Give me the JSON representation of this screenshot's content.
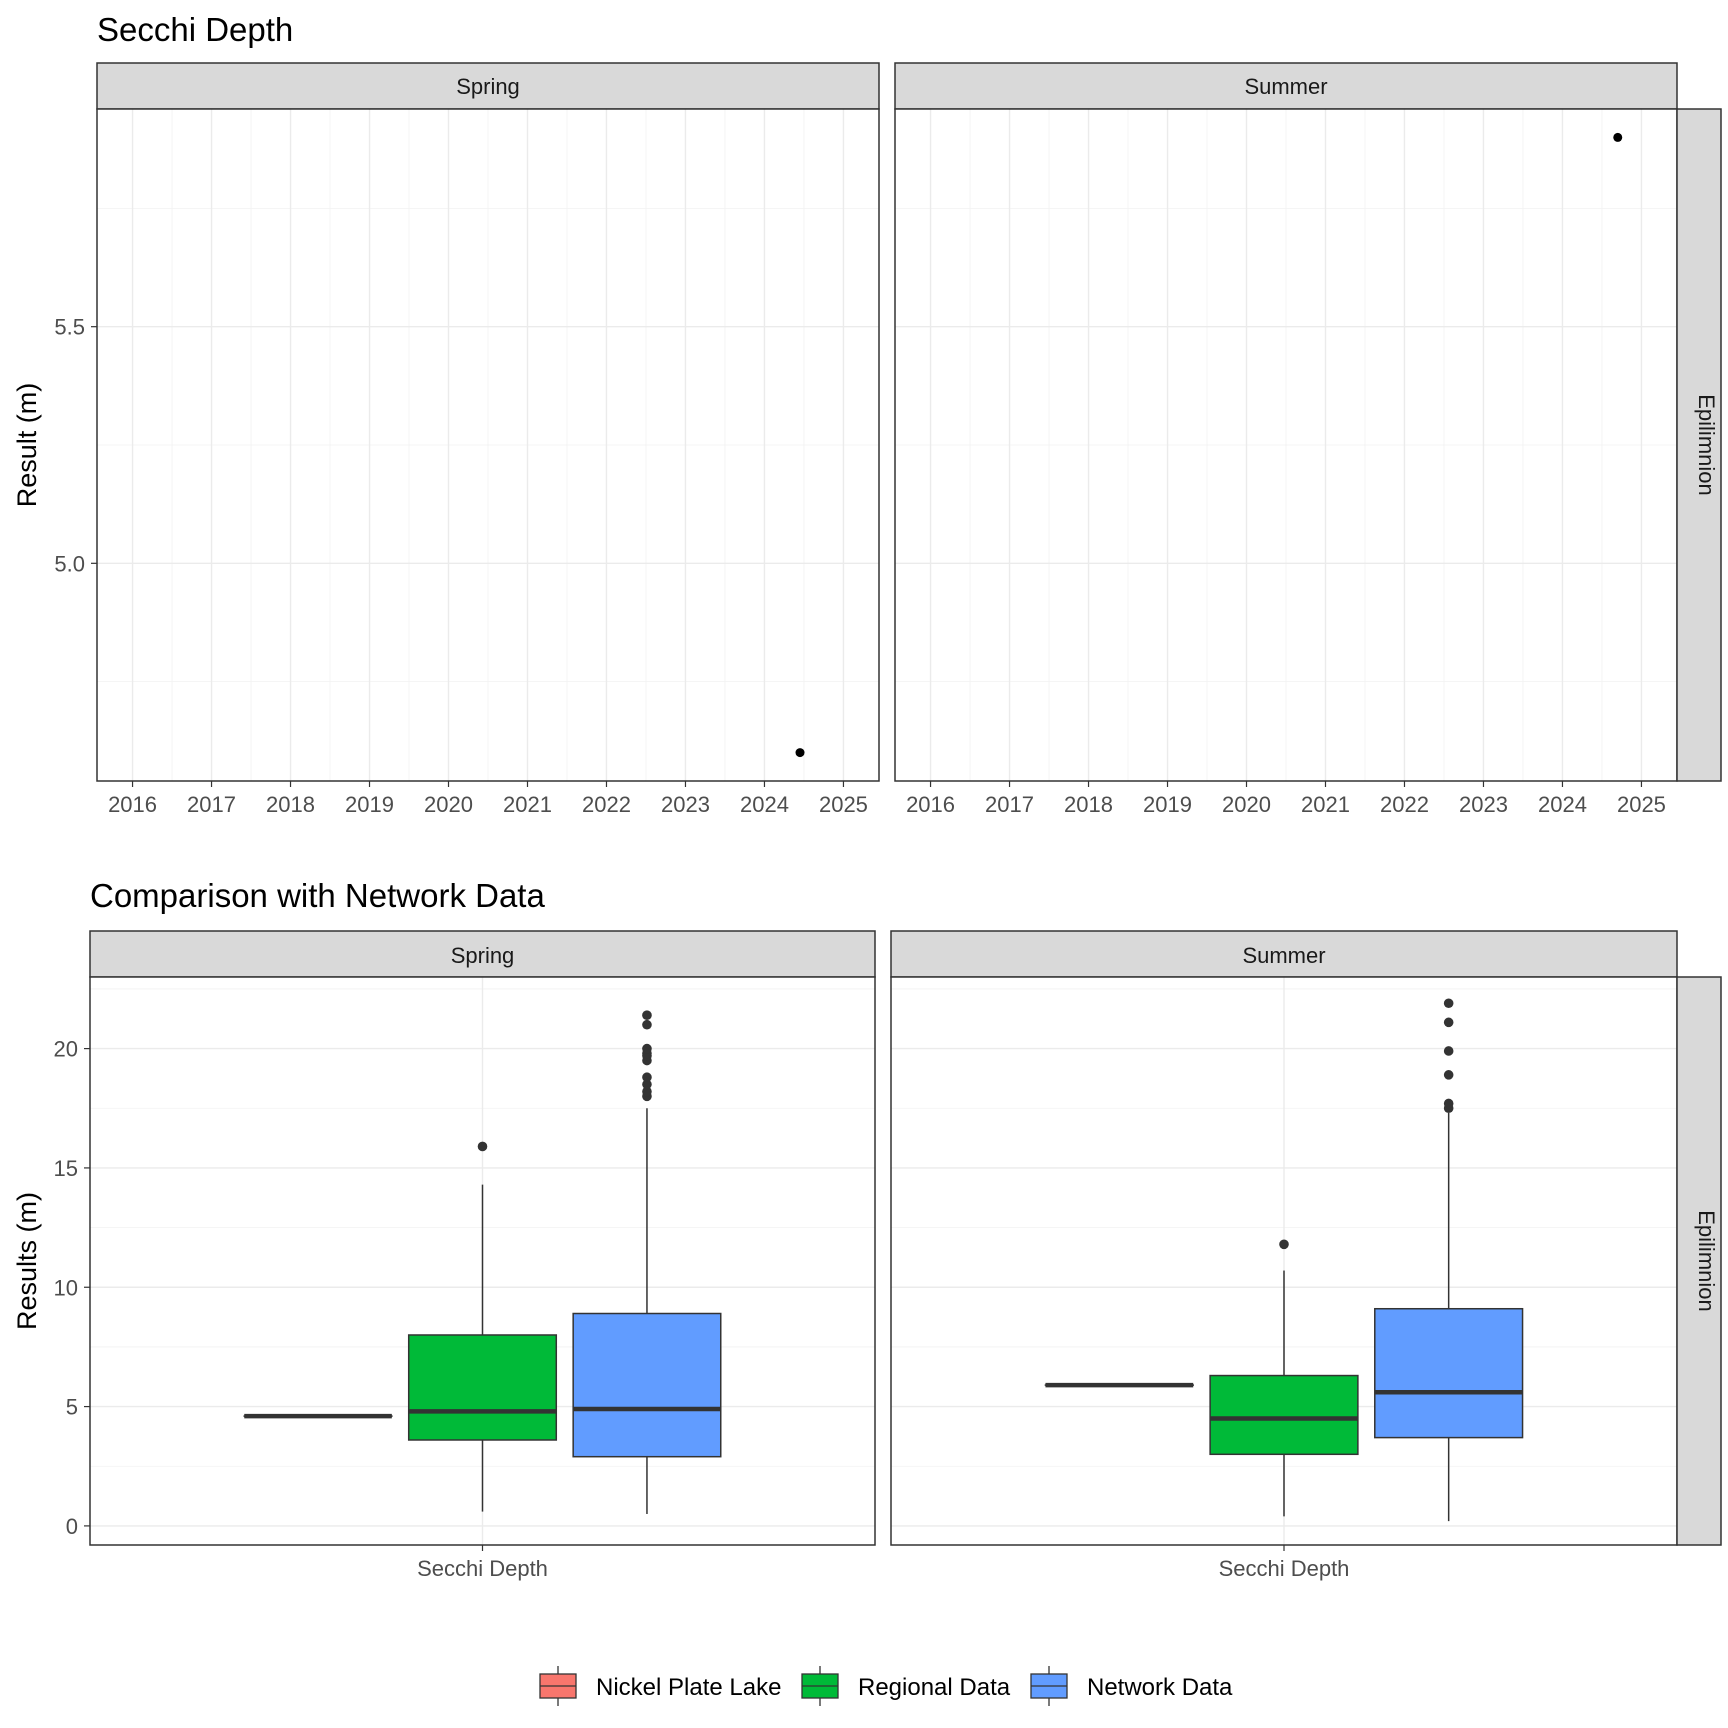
{
  "colors": {
    "nickel": "#F8766D",
    "regional": "#00BA38",
    "network": "#619CFF",
    "point": "#000000",
    "outlier": "#333333"
  },
  "chart_data": [
    {
      "type": "scatter",
      "title": "Secchi Depth",
      "ylabel": "Result (m)",
      "xlabel": "",
      "facet_row_label": "Epilimnion",
      "xlim": [
        2015.55,
        2025.45
      ],
      "ylim": [
        4.54,
        5.96
      ],
      "x_ticks": [
        2016,
        2017,
        2018,
        2019,
        2020,
        2021,
        2022,
        2023,
        2024,
        2025
      ],
      "y_ticks": [
        5.0,
        5.5
      ],
      "y_tick_labels": [
        "5.0",
        "5.5"
      ],
      "grid": true,
      "panels": [
        {
          "facet": "Spring",
          "points": [
            {
              "x": 2024.45,
              "y": 4.6
            }
          ]
        },
        {
          "facet": "Summer",
          "points": [
            {
              "x": 2024.7,
              "y": 5.9
            }
          ]
        }
      ]
    },
    {
      "type": "box",
      "title": "Comparison with Network Data",
      "ylabel": "Results (m)",
      "xlabel": "",
      "category": "Secchi Depth",
      "facet_row_label": "Epilimnion",
      "ylim": [
        -0.8,
        23.0
      ],
      "y_ticks": [
        0,
        5,
        10,
        15,
        20
      ],
      "y_tick_labels": [
        "0",
        "5",
        "10",
        "15",
        "20"
      ],
      "grid": true,
      "legend_position": "bottom",
      "legend": [
        "Nickel Plate Lake",
        "Regional Data",
        "Network Data"
      ],
      "panels": [
        {
          "facet": "Spring",
          "boxes": [
            {
              "group": "Nickel Plate Lake",
              "min": 4.6,
              "q1": 4.6,
              "median": 4.6,
              "q3": 4.6,
              "max": 4.6,
              "outliers": []
            },
            {
              "group": "Regional Data",
              "min": 0.6,
              "q1": 3.6,
              "median": 4.8,
              "q3": 8.0,
              "max": 14.3,
              "outliers": [
                15.9
              ]
            },
            {
              "group": "Network Data",
              "min": 0.5,
              "q1": 2.9,
              "median": 4.9,
              "q3": 8.9,
              "max": 17.5,
              "outliers": [
                18.0,
                18.2,
                18.5,
                18.8,
                19.5,
                19.7,
                19.8,
                20.0,
                21.0,
                21.4
              ]
            }
          ]
        },
        {
          "facet": "Summer",
          "boxes": [
            {
              "group": "Nickel Plate Lake",
              "min": 5.9,
              "q1": 5.9,
              "median": 5.9,
              "q3": 5.9,
              "max": 5.9,
              "outliers": []
            },
            {
              "group": "Regional Data",
              "min": 0.4,
              "q1": 3.0,
              "median": 4.5,
              "q3": 6.3,
              "max": 10.7,
              "outliers": [
                11.8
              ]
            },
            {
              "group": "Network Data",
              "min": 0.2,
              "q1": 3.7,
              "median": 5.6,
              "q3": 9.1,
              "max": 17.3,
              "outliers": [
                17.5,
                17.7,
                18.9,
                19.9,
                21.1,
                21.9
              ]
            }
          ]
        }
      ]
    }
  ]
}
